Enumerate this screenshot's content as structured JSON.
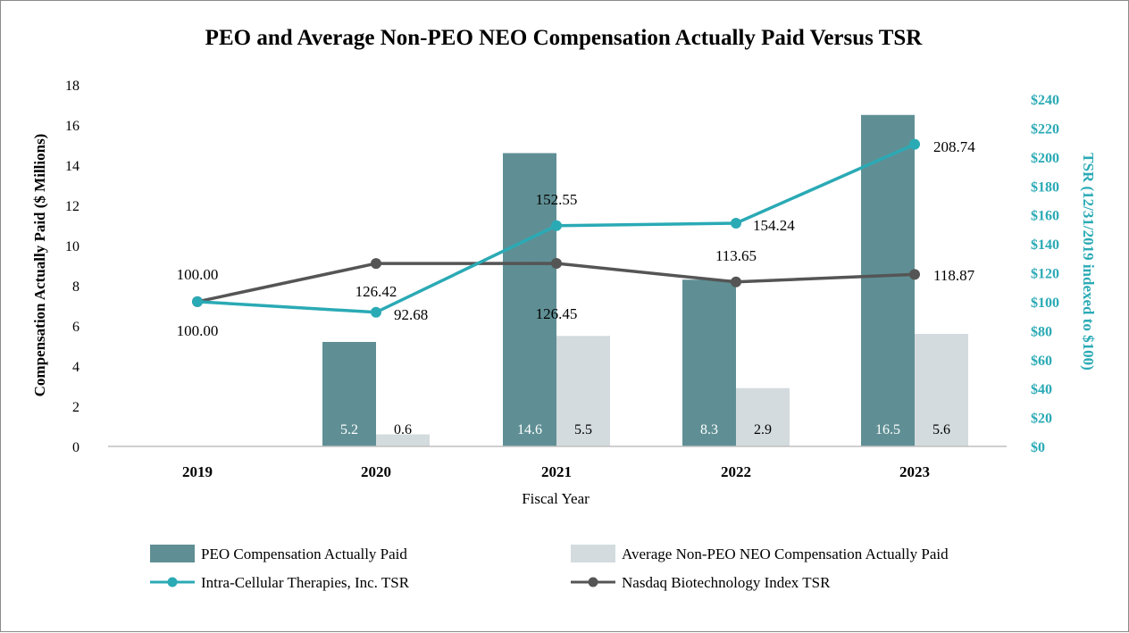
{
  "chart_data": {
    "type": "bar",
    "title": "PEO and Average Non-PEO NEO Compensation Actually Paid Versus TSR",
    "xlabel": "Fiscal Year",
    "ylabel": "Compensation Actually Paid ($ Millions)",
    "y2label": "TSR (12/31/2019 indexed to $100)",
    "categories": [
      "2019",
      "2020",
      "2021",
      "2022",
      "2023"
    ],
    "ylim": [
      0,
      18
    ],
    "yticks": [
      "0",
      "2",
      "4",
      "6",
      "8",
      "10",
      "12",
      "14",
      "16",
      "18"
    ],
    "y2lim": [
      0,
      250
    ],
    "y2ticks": [
      "$0",
      "$20",
      "$40",
      "$60",
      "$80",
      "$100",
      "$120",
      "$140",
      "$160",
      "$180",
      "$200",
      "$220",
      "$240"
    ],
    "series": [
      {
        "name": "PEO Compensation Actually Paid",
        "kind": "bar",
        "axis": "left",
        "color": "#5f8f94",
        "values": [
          null,
          5.2,
          14.6,
          8.3,
          16.5
        ],
        "labels": [
          "",
          "5.2",
          "14.6",
          "8.3",
          "16.5"
        ]
      },
      {
        "name": "Average Non-PEO NEO Compensation Actually Paid",
        "kind": "bar",
        "axis": "left",
        "color": "#d3dbde",
        "values": [
          null,
          0.6,
          5.5,
          2.9,
          5.6
        ],
        "labels": [
          "",
          "0.6",
          "5.5",
          "2.9",
          "5.6"
        ]
      },
      {
        "name": "Intra-Cellular Therapies, Inc. TSR",
        "kind": "line",
        "axis": "right",
        "color": "#2aaab5",
        "values": [
          100.0,
          92.68,
          152.55,
          154.24,
          208.74
        ],
        "labels": [
          "100.00",
          "92.68",
          "152.55",
          "154.24",
          "208.74"
        ]
      },
      {
        "name": "Nasdaq Biotechnology Index TSR",
        "kind": "line",
        "axis": "right",
        "color": "#555555",
        "values": [
          100.0,
          126.42,
          126.45,
          113.65,
          118.87
        ],
        "labels": [
          "100.00",
          "126.42",
          "126.45",
          "113.65",
          "118.87"
        ]
      }
    ],
    "legend": "bottom"
  }
}
